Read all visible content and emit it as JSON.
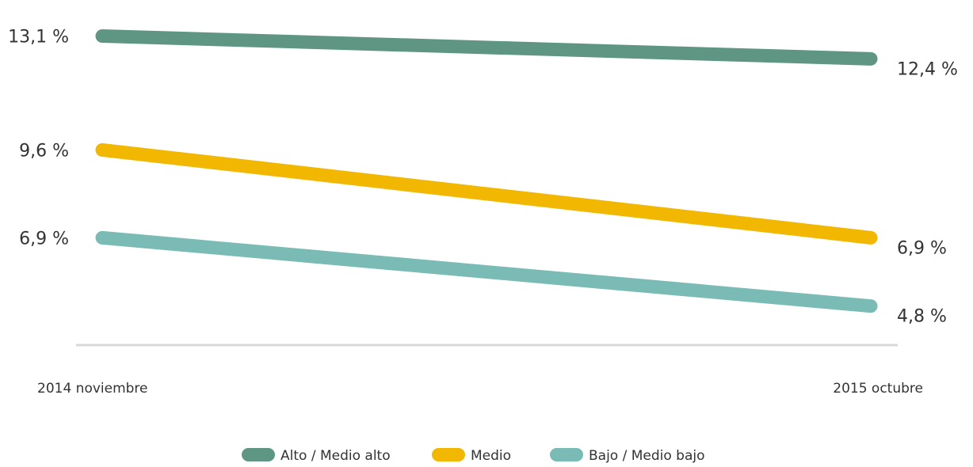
{
  "chart_data": {
    "type": "line",
    "title": "",
    "xlabel": "",
    "ylabel": "",
    "categories": [
      "2014 noviembre",
      "2015 octubre"
    ],
    "ylim": [
      3.6,
      13.6
    ],
    "grid": false,
    "legend_position": "bottom",
    "series": [
      {
        "name": "Alto / Medio alto",
        "color": "#5e9683",
        "values": [
          13.1,
          12.4
        ],
        "labels": [
          "13,1 %",
          "12,4 %"
        ]
      },
      {
        "name": "Medio",
        "color": "#f2b700",
        "values": [
          9.6,
          6.9
        ],
        "labels": [
          "9,6 %",
          "6,9 %"
        ]
      },
      {
        "name": "Bajo / Medio bajo",
        "color": "#7abbb6",
        "values": [
          6.9,
          4.8
        ],
        "labels": [
          "6,9 %",
          "4,8 %"
        ]
      }
    ]
  }
}
